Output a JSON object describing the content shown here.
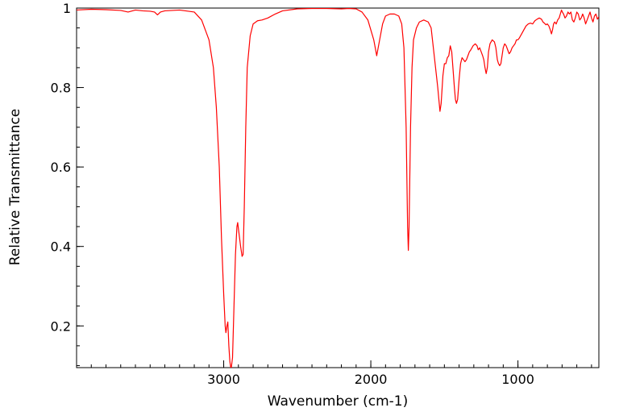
{
  "chart_data": {
    "type": "line",
    "title": "",
    "xlabel": "Wavenumber (cm-1)",
    "ylabel": "Relative Transmittance",
    "xlim": [
      4000,
      450
    ],
    "ylim": [
      0.095,
      1.0
    ],
    "x_reversed": true,
    "grid": false,
    "legend": "none",
    "x_ticks": [
      3000,
      2000,
      1000
    ],
    "x_tick_labels": [
      "3000",
      "2000",
      "1000"
    ],
    "y_ticks": [
      0.2,
      0.4,
      0.6,
      0.8,
      1.0
    ],
    "y_tick_labels": [
      "0.2",
      "0.4",
      "0.6",
      "0.8",
      "1"
    ],
    "x_minor_step": 100,
    "y_minor_step": 0.05,
    "series": [
      {
        "color": "#ff0000",
        "points": [
          [
            4000,
            0.995
          ],
          [
            3900,
            0.997
          ],
          [
            3800,
            0.996
          ],
          [
            3700,
            0.994
          ],
          [
            3650,
            0.99
          ],
          [
            3600,
            0.995
          ],
          [
            3550,
            0.993
          ],
          [
            3500,
            0.992
          ],
          [
            3470,
            0.99
          ],
          [
            3450,
            0.983
          ],
          [
            3430,
            0.99
          ],
          [
            3400,
            0.993
          ],
          [
            3300,
            0.995
          ],
          [
            3200,
            0.99
          ],
          [
            3150,
            0.97
          ],
          [
            3100,
            0.92
          ],
          [
            3070,
            0.85
          ],
          [
            3050,
            0.75
          ],
          [
            3030,
            0.6
          ],
          [
            3015,
            0.42
          ],
          [
            3000,
            0.28
          ],
          [
            2990,
            0.2
          ],
          [
            2985,
            0.183
          ],
          [
            2978,
            0.2
          ],
          [
            2972,
            0.21
          ],
          [
            2965,
            0.15
          ],
          [
            2958,
            0.11
          ],
          [
            2950,
            0.09
          ],
          [
            2940,
            0.12
          ],
          [
            2930,
            0.25
          ],
          [
            2920,
            0.38
          ],
          [
            2910,
            0.45
          ],
          [
            2905,
            0.46
          ],
          [
            2895,
            0.43
          ],
          [
            2885,
            0.4
          ],
          [
            2875,
            0.375
          ],
          [
            2868,
            0.38
          ],
          [
            2860,
            0.5
          ],
          [
            2850,
            0.7
          ],
          [
            2840,
            0.85
          ],
          [
            2820,
            0.93
          ],
          [
            2800,
            0.96
          ],
          [
            2770,
            0.968
          ],
          [
            2740,
            0.97
          ],
          [
            2700,
            0.975
          ],
          [
            2650,
            0.985
          ],
          [
            2600,
            0.993
          ],
          [
            2500,
            0.998
          ],
          [
            2400,
            0.999
          ],
          [
            2300,
            0.999
          ],
          [
            2200,
            0.998
          ],
          [
            2150,
            0.999
          ],
          [
            2100,
            0.998
          ],
          [
            2060,
            0.99
          ],
          [
            2020,
            0.97
          ],
          [
            1980,
            0.92
          ],
          [
            1960,
            0.88
          ],
          [
            1940,
            0.92
          ],
          [
            1920,
            0.96
          ],
          [
            1900,
            0.98
          ],
          [
            1870,
            0.985
          ],
          [
            1840,
            0.985
          ],
          [
            1810,
            0.98
          ],
          [
            1790,
            0.96
          ],
          [
            1775,
            0.9
          ],
          [
            1760,
            0.7
          ],
          [
            1750,
            0.45
          ],
          [
            1745,
            0.39
          ],
          [
            1740,
            0.45
          ],
          [
            1730,
            0.7
          ],
          [
            1720,
            0.85
          ],
          [
            1710,
            0.92
          ],
          [
            1690,
            0.95
          ],
          [
            1670,
            0.965
          ],
          [
            1640,
            0.97
          ],
          [
            1610,
            0.965
          ],
          [
            1590,
            0.95
          ],
          [
            1575,
            0.9
          ],
          [
            1560,
            0.85
          ],
          [
            1545,
            0.8
          ],
          [
            1535,
            0.76
          ],
          [
            1530,
            0.74
          ],
          [
            1522,
            0.76
          ],
          [
            1510,
            0.83
          ],
          [
            1500,
            0.86
          ],
          [
            1490,
            0.86
          ],
          [
            1480,
            0.875
          ],
          [
            1470,
            0.88
          ],
          [
            1460,
            0.905
          ],
          [
            1450,
            0.89
          ],
          [
            1440,
            0.84
          ],
          [
            1432,
            0.8
          ],
          [
            1425,
            0.77
          ],
          [
            1418,
            0.76
          ],
          [
            1410,
            0.77
          ],
          [
            1400,
            0.82
          ],
          [
            1390,
            0.86
          ],
          [
            1380,
            0.875
          ],
          [
            1370,
            0.87
          ],
          [
            1360,
            0.865
          ],
          [
            1350,
            0.87
          ],
          [
            1340,
            0.88
          ],
          [
            1330,
            0.89
          ],
          [
            1320,
            0.895
          ],
          [
            1305,
            0.905
          ],
          [
            1290,
            0.91
          ],
          [
            1278,
            0.905
          ],
          [
            1270,
            0.895
          ],
          [
            1260,
            0.9
          ],
          [
            1250,
            0.89
          ],
          [
            1240,
            0.88
          ],
          [
            1232,
            0.87
          ],
          [
            1224,
            0.85
          ],
          [
            1216,
            0.835
          ],
          [
            1208,
            0.85
          ],
          [
            1200,
            0.89
          ],
          [
            1190,
            0.91
          ],
          [
            1175,
            0.92
          ],
          [
            1160,
            0.915
          ],
          [
            1150,
            0.9
          ],
          [
            1140,
            0.87
          ],
          [
            1132,
            0.86
          ],
          [
            1124,
            0.855
          ],
          [
            1116,
            0.86
          ],
          [
            1108,
            0.88
          ],
          [
            1100,
            0.9
          ],
          [
            1090,
            0.91
          ],
          [
            1080,
            0.905
          ],
          [
            1070,
            0.895
          ],
          [
            1060,
            0.885
          ],
          [
            1050,
            0.89
          ],
          [
            1040,
            0.9
          ],
          [
            1030,
            0.905
          ],
          [
            1020,
            0.91
          ],
          [
            1010,
            0.92
          ],
          [
            1000,
            0.92
          ],
          [
            990,
            0.925
          ],
          [
            975,
            0.935
          ],
          [
            960,
            0.945
          ],
          [
            945,
            0.955
          ],
          [
            930,
            0.96
          ],
          [
            915,
            0.962
          ],
          [
            900,
            0.96
          ],
          [
            885,
            0.968
          ],
          [
            870,
            0.972
          ],
          [
            855,
            0.975
          ],
          [
            840,
            0.972
          ],
          [
            830,
            0.965
          ],
          [
            820,
            0.962
          ],
          [
            810,
            0.958
          ],
          [
            800,
            0.96
          ],
          [
            790,
            0.955
          ],
          [
            780,
            0.945
          ],
          [
            772,
            0.935
          ],
          [
            765,
            0.945
          ],
          [
            758,
            0.96
          ],
          [
            750,
            0.965
          ],
          [
            740,
            0.96
          ],
          [
            730,
            0.97
          ],
          [
            720,
            0.975
          ],
          [
            712,
            0.985
          ],
          [
            704,
            0.995
          ],
          [
            698,
            0.99
          ],
          [
            690,
            0.985
          ],
          [
            680,
            0.975
          ],
          [
            670,
            0.98
          ],
          [
            660,
            0.99
          ],
          [
            650,
            0.985
          ],
          [
            640,
            0.99
          ],
          [
            630,
            0.97
          ],
          [
            620,
            0.965
          ],
          [
            610,
            0.975
          ],
          [
            600,
            0.99
          ],
          [
            590,
            0.985
          ],
          [
            580,
            0.97
          ],
          [
            570,
            0.975
          ],
          [
            560,
            0.985
          ],
          [
            550,
            0.975
          ],
          [
            540,
            0.96
          ],
          [
            530,
            0.97
          ],
          [
            520,
            0.98
          ],
          [
            510,
            0.99
          ],
          [
            500,
            0.975
          ],
          [
            490,
            0.965
          ],
          [
            480,
            0.98
          ],
          [
            470,
            0.985
          ],
          [
            460,
            0.972
          ],
          [
            450,
            0.978
          ]
        ]
      }
    ]
  }
}
